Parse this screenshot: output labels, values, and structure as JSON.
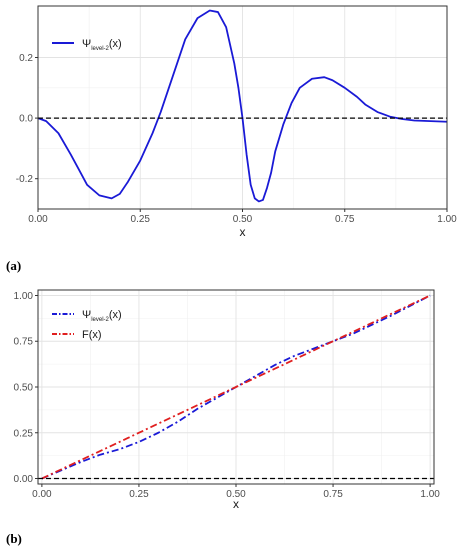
{
  "chart_data": [
    {
      "panel_label": "(a)",
      "type": "line",
      "xlabel": "x",
      "ylabel": "",
      "xlim": [
        0,
        1
      ],
      "ylim": [
        -0.3,
        0.37
      ],
      "x_ticks": [
        "0.00",
        "0.25",
        "0.50",
        "0.75",
        "1.00"
      ],
      "x_tick_values": [
        0,
        0.25,
        0.5,
        0.75,
        1
      ],
      "y_ticks": [
        "-0.2",
        "0.0",
        "0.2"
      ],
      "y_tick_values": [
        -0.2,
        0,
        0.2
      ],
      "grid": true,
      "legend_position": "top-left",
      "series": [
        {
          "name": "Ψ",
          "name_sub": "level-2",
          "name_suffix": "(x)",
          "color": "#1a1ad6",
          "style": "solid",
          "x": [
            0,
            0.02,
            0.05,
            0.08,
            0.1,
            0.12,
            0.15,
            0.18,
            0.2,
            0.22,
            0.25,
            0.28,
            0.3,
            0.33,
            0.36,
            0.39,
            0.42,
            0.44,
            0.46,
            0.48,
            0.49,
            0.5,
            0.51,
            0.52,
            0.53,
            0.54,
            0.55,
            0.56,
            0.57,
            0.58,
            0.6,
            0.62,
            0.64,
            0.67,
            0.7,
            0.72,
            0.75,
            0.78,
            0.8,
            0.83,
            0.86,
            0.89,
            0.92,
            0.96,
            1.0
          ],
          "y": [
            0,
            -0.01,
            -0.05,
            -0.12,
            -0.17,
            -0.22,
            -0.255,
            -0.265,
            -0.25,
            -0.21,
            -0.14,
            -0.05,
            0.02,
            0.14,
            0.26,
            0.33,
            0.355,
            0.35,
            0.3,
            0.18,
            0.1,
            0.0,
            -0.12,
            -0.22,
            -0.265,
            -0.275,
            -0.27,
            -0.23,
            -0.18,
            -0.11,
            -0.02,
            0.05,
            0.1,
            0.13,
            0.135,
            0.125,
            0.1,
            0.07,
            0.045,
            0.02,
            0.005,
            -0.003,
            -0.008,
            -0.01,
            -0.012
          ]
        },
        {
          "name": "",
          "color": "#000000",
          "style": "dashed",
          "x": [
            0,
            1
          ],
          "y": [
            0,
            0
          ]
        }
      ]
    },
    {
      "panel_label": "(b)",
      "type": "line",
      "xlabel": "x",
      "ylabel": "",
      "xlim": [
        -0.01,
        1.01
      ],
      "ylim": [
        -0.03,
        1.03
      ],
      "x_ticks": [
        "0.00",
        "0.25",
        "0.50",
        "0.75",
        "1.00"
      ],
      "x_tick_values": [
        0,
        0.25,
        0.5,
        0.75,
        1
      ],
      "y_ticks": [
        "0.00",
        "0.25",
        "0.50",
        "0.75",
        "1.00"
      ],
      "y_tick_values": [
        0,
        0.25,
        0.5,
        0.75,
        1
      ],
      "grid": true,
      "legend_position": "top-left",
      "series": [
        {
          "name": "Ψ",
          "name_sub": "level-2",
          "name_suffix": "(x)",
          "color": "#1a1ad6",
          "style": "dashdot",
          "x": [
            0,
            0.05,
            0.1,
            0.15,
            0.2,
            0.25,
            0.3,
            0.35,
            0.4,
            0.45,
            0.5,
            0.55,
            0.6,
            0.65,
            0.7,
            0.75,
            0.8,
            0.85,
            0.9,
            0.95,
            1.0
          ],
          "y": [
            0,
            0.045,
            0.09,
            0.13,
            0.16,
            0.2,
            0.25,
            0.31,
            0.38,
            0.44,
            0.5,
            0.56,
            0.62,
            0.67,
            0.71,
            0.75,
            0.79,
            0.84,
            0.89,
            0.945,
            1.0
          ]
        },
        {
          "name": "F(x)",
          "color": "#e01f1f",
          "style": "dashdot",
          "x": [
            0,
            0.1,
            0.2,
            0.3,
            0.4,
            0.5,
            0.6,
            0.7,
            0.8,
            0.9,
            1.0
          ],
          "y": [
            0,
            0.1,
            0.2,
            0.3,
            0.4,
            0.5,
            0.6,
            0.7,
            0.8,
            0.9,
            1.0
          ]
        },
        {
          "name": "",
          "color": "#000000",
          "style": "dashed",
          "x": [
            -0.01,
            1.01
          ],
          "y": [
            0,
            0
          ]
        }
      ]
    }
  ]
}
